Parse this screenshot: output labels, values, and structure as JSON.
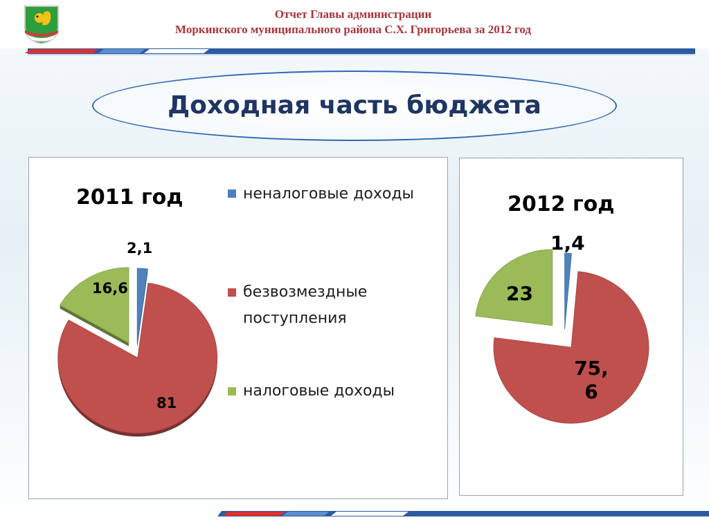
{
  "header": {
    "line1": "Отчет  Главы администрации",
    "line2": "Моркинского муниципального района С.Х. Григорьева за 2012 год"
  },
  "slide_title": "Доходная часть бюджета",
  "colors": {
    "nontax": "#4f81bd",
    "grants": "#c0504d",
    "tax": "#9bbb59",
    "header_text": "#a9343a",
    "title_text": "#1f3563"
  },
  "legend": [
    {
      "label": "неналоговые доходы",
      "color": "#4f81bd"
    },
    {
      "label": "безвозмездные поступления",
      "color": "#c0504d"
    },
    {
      "label": "налоговые доходы",
      "color": "#9bbb59"
    }
  ],
  "chart_data": [
    {
      "type": "pie",
      "title": "2011 год",
      "categories": [
        "неналоговые доходы",
        "безвозмездные поступления",
        "налоговые доходы"
      ],
      "values": [
        2.1,
        81,
        16.6
      ],
      "labels": [
        "2,1",
        "81",
        "16,6"
      ],
      "legend": "right",
      "exploded": true
    },
    {
      "type": "pie",
      "title": "2012 год",
      "categories": [
        "неналоговые доходы",
        "безвозмездные поступления",
        "налоговые доходы"
      ],
      "values": [
        1.4,
        75.6,
        23
      ],
      "labels": [
        "1,4",
        "75,\n6",
        "23"
      ],
      "legend": "none",
      "exploded": true
    }
  ]
}
